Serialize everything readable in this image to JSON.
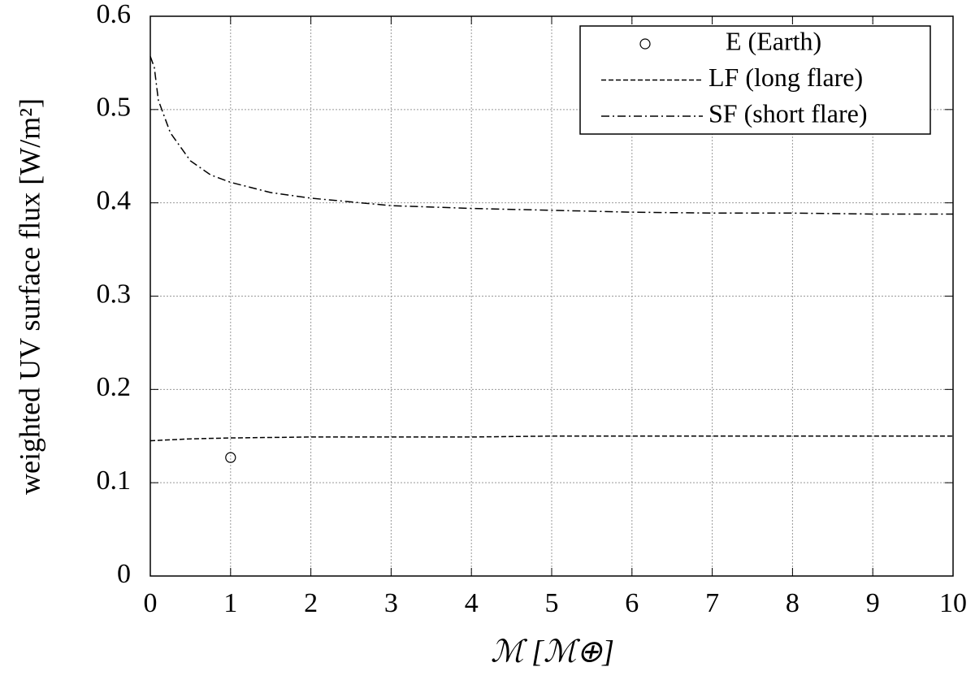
{
  "chart_data": {
    "type": "line",
    "xlabel": "ℳ [ℳ⊕]",
    "ylabel": "weighted UV surface flux [W/m²]",
    "xlim": [
      0,
      10
    ],
    "xticks": [
      0,
      1,
      2,
      3,
      4,
      5,
      6,
      7,
      8,
      9,
      10
    ],
    "ylim": [
      0,
      0.6
    ],
    "yticks": [
      0,
      0.1,
      0.2,
      0.3,
      0.4,
      0.5,
      0.6
    ],
    "grid": true,
    "legend": "upper right",
    "series": [
      {
        "name": "E (Earth)",
        "color": "#000000",
        "marker": "circle",
        "x": [
          1
        ],
        "values": [
          0.127
        ]
      },
      {
        "name": "LF (long flare)",
        "color": "#000000",
        "dash": "dashed",
        "x": [
          0,
          0.25,
          0.5,
          1,
          2,
          3,
          4,
          5,
          6,
          7,
          8,
          9,
          10
        ],
        "values": [
          0.145,
          0.146,
          0.147,
          0.148,
          0.149,
          0.149,
          0.149,
          0.15,
          0.15,
          0.15,
          0.15,
          0.15,
          0.15
        ]
      },
      {
        "name": "SF (short flare)",
        "color": "#000000",
        "dash": "dashdot",
        "x": [
          0,
          0.05,
          0.1,
          0.25,
          0.5,
          0.75,
          1,
          1.5,
          2,
          3,
          4,
          5,
          6,
          7,
          8,
          9,
          10
        ],
        "values": [
          0.557,
          0.545,
          0.51,
          0.475,
          0.445,
          0.43,
          0.422,
          0.411,
          0.405,
          0.397,
          0.394,
          0.392,
          0.39,
          0.389,
          0.389,
          0.388,
          0.388
        ]
      }
    ]
  }
}
